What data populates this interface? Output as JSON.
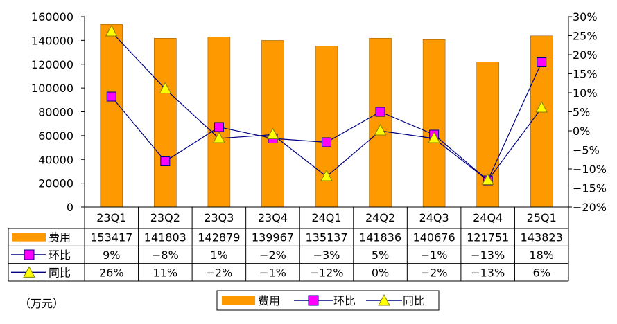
{
  "chart_data": {
    "type": "bar",
    "categories": [
      "23Q1",
      "23Q2",
      "23Q3",
      "23Q4",
      "24Q1",
      "24Q2",
      "24Q3",
      "24Q4",
      "25Q1"
    ],
    "series": [
      {
        "name": "费用",
        "kind": "bar",
        "values": [
          153417,
          141803,
          142879,
          139967,
          135137,
          141836,
          140676,
          121751,
          143823
        ],
        "color": "#FF9900"
      },
      {
        "name": "环比",
        "kind": "line",
        "axis": "right",
        "values": [
          9,
          -8,
          1,
          -2,
          -3,
          5,
          -1,
          -13,
          18
        ],
        "color": "#FF00FF"
      },
      {
        "name": "同比",
        "kind": "line",
        "axis": "right",
        "values": [
          26,
          11,
          -2,
          -1,
          -12,
          0,
          -2,
          -13,
          6
        ],
        "color": "#FFFF00"
      }
    ],
    "table_rows": [
      {
        "label": "费用",
        "cells": [
          "153417",
          "141803",
          "142879",
          "139967",
          "135137",
          "141836",
          "140676",
          "121751",
          "143823"
        ]
      },
      {
        "label": "环比",
        "cells": [
          "9%",
          "−8%",
          "1%",
          "−2%",
          "−3%",
          "5%",
          "−1%",
          "−13%",
          "18%"
        ]
      },
      {
        "label": "同比",
        "cells": [
          "26%",
          "11%",
          "−2%",
          "−1%",
          "−12%",
          "0%",
          "−2%",
          "−13%",
          "6%"
        ]
      }
    ],
    "y_left": {
      "ticks": [
        "160000",
        "140000",
        "120000",
        "100000",
        "80000",
        "60000",
        "40000",
        "20000",
        "0"
      ],
      "range": [
        0,
        160000
      ]
    },
    "y_right": {
      "ticks": [
        "30%",
        "25%",
        "20%",
        "15%",
        "10%",
        "5%",
        "0%",
        "−5%",
        "−10%",
        "−15%",
        "−20%"
      ],
      "range": [
        -20,
        30
      ]
    },
    "unit_label": "（万元）",
    "legend": [
      "费用",
      "环比",
      "同比"
    ],
    "line_color": "#000080",
    "grid": false
  }
}
